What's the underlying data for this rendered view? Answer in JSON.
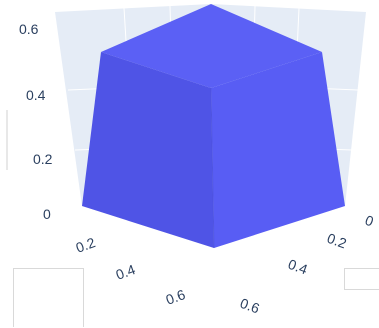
{
  "chart_data": {
    "type": "mesh3d",
    "title": "",
    "shape": "cube",
    "color": "#5156f2",
    "scene_background": "#e5ecf6",
    "x_axis": {
      "ticks": [
        "0",
        "0.2",
        "0.4",
        "0.6"
      ],
      "label": ""
    },
    "y_axis": {
      "ticks": [
        "0",
        "0.2",
        "0.4",
        "0.6"
      ],
      "label": ""
    },
    "z_axis": {
      "ticks": [
        "0",
        "0.2",
        "0.4",
        "0.6"
      ],
      "label": ""
    },
    "grid": true
  }
}
